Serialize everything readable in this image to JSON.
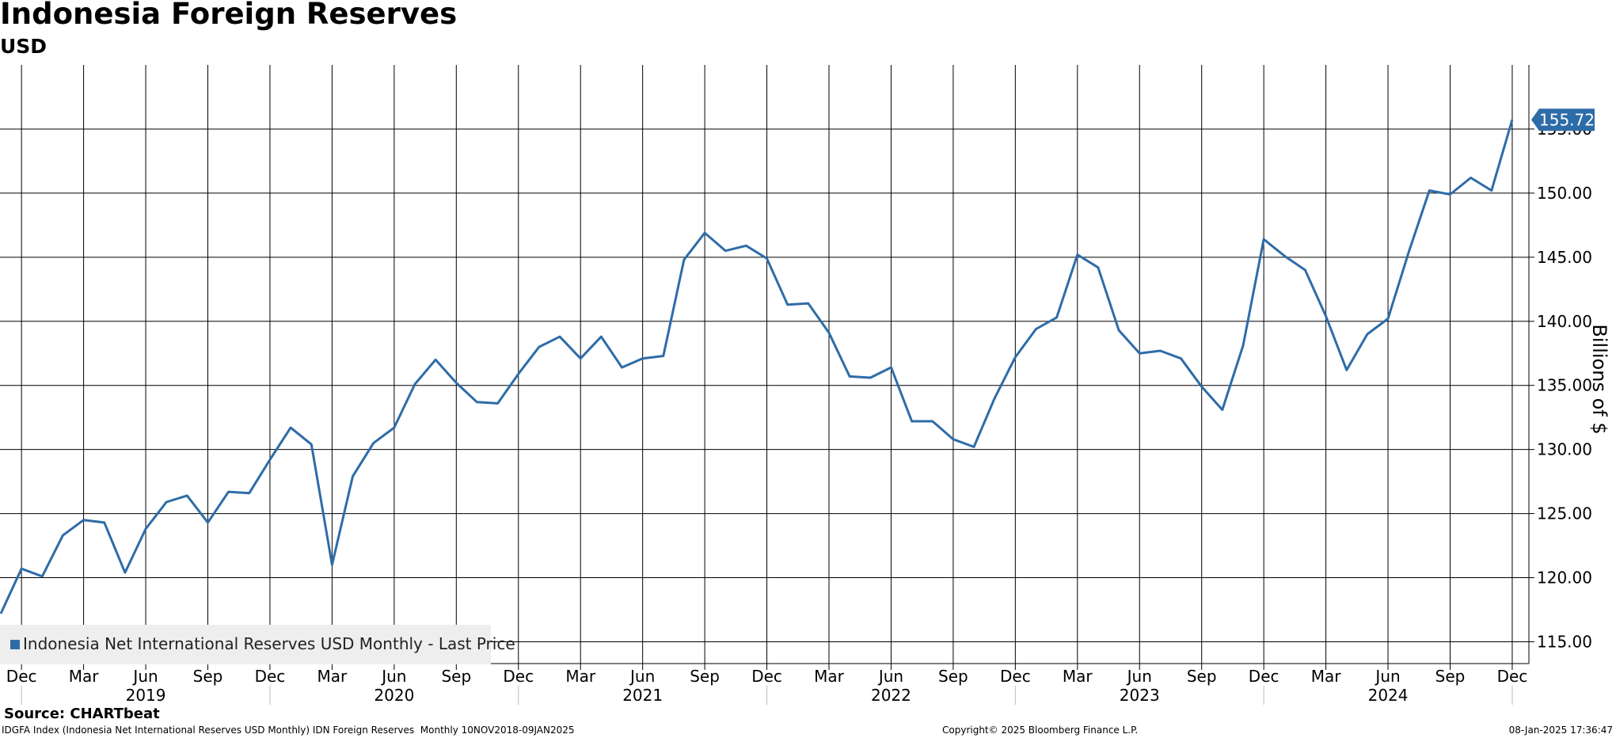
{
  "title": "Indonesia Foreign Reserves",
  "subtitle": "USD",
  "source": "Source: CHARTbeat",
  "footer": {
    "left": "IDGFA Index (Indonesia Net International Reserves USD Monthly) IDN Foreign Reserves  Monthly 10NOV2018-09JAN2025",
    "mid": "Copyright© 2025 Bloomberg Finance L.P.",
    "right": "08-Jan-2025 17:36:47"
  },
  "colors": {
    "line": "#2e6ca8",
    "grid": "#000000",
    "last_price_bg": "#2e6ca8",
    "legend_bg": "#eeeeee"
  },
  "chart_data": {
    "type": "line",
    "ylabel": "Billions of $",
    "ylim": [
      113.3,
      160.0
    ],
    "y_ticks": [
      "115.00",
      "120.00",
      "125.00",
      "130.00",
      "135.00",
      "140.00",
      "145.00",
      "150.00",
      "155.00"
    ],
    "y_tick_values": [
      115,
      120,
      125,
      130,
      135,
      140,
      145,
      150,
      155
    ],
    "month_ticks": [
      "Dec",
      "Mar",
      "Jun",
      "Sep",
      "Dec",
      "Mar",
      "Jun",
      "Sep",
      "Dec",
      "Mar",
      "Jun",
      "Sep",
      "Dec",
      "Mar",
      "Jun",
      "Sep",
      "Dec",
      "Mar",
      "Jun",
      "Sep",
      "Dec",
      "Mar",
      "Jun",
      "Sep",
      "Dec"
    ],
    "year_labels": [
      "2019",
      "2020",
      "2021",
      "2022",
      "2023",
      "2024"
    ],
    "x_start": "Nov 2018",
    "x_end": "Jan 2025",
    "last_price_label": "155.72",
    "legend": "Indonesia Net International Reserves USD Monthly - Last Price",
    "series": [
      {
        "name": "Indonesia Net International Reserves USD Monthly - Last Price",
        "x": [
          "Nov 2018",
          "Dec 2018",
          "Jan 2019",
          "Feb 2019",
          "Mar 2019",
          "Apr 2019",
          "May 2019",
          "Jun 2019",
          "Jul 2019",
          "Aug 2019",
          "Sep 2019",
          "Oct 2019",
          "Nov 2019",
          "Dec 2019",
          "Jan 2020",
          "Feb 2020",
          "Mar 2020",
          "Apr 2020",
          "May 2020",
          "Jun 2020",
          "Jul 2020",
          "Aug 2020",
          "Sep 2020",
          "Oct 2020",
          "Nov 2020",
          "Dec 2020",
          "Jan 2021",
          "Feb 2021",
          "Mar 2021",
          "Apr 2021",
          "May 2021",
          "Jun 2021",
          "Jul 2021",
          "Aug 2021",
          "Sep 2021",
          "Oct 2021",
          "Nov 2021",
          "Dec 2021",
          "Jan 2022",
          "Feb 2022",
          "Mar 2022",
          "Apr 2022",
          "May 2022",
          "Jun 2022",
          "Jul 2022",
          "Aug 2022",
          "Sep 2022",
          "Oct 2022",
          "Nov 2022",
          "Dec 2022",
          "Jan 2023",
          "Feb 2023",
          "Mar 2023",
          "Apr 2023",
          "May 2023",
          "Jun 2023",
          "Jul 2023",
          "Aug 2023",
          "Sep 2023",
          "Oct 2023",
          "Nov 2023",
          "Dec 2023",
          "Jan 2024",
          "Feb 2024",
          "Mar 2024",
          "Apr 2024",
          "May 2024",
          "Jun 2024",
          "Jul 2024",
          "Aug 2024",
          "Sep 2024",
          "Oct 2024",
          "Nov 2024",
          "Dec 2024"
        ],
        "values": [
          117.2,
          120.7,
          120.1,
          123.3,
          124.5,
          124.3,
          120.4,
          123.8,
          125.9,
          126.4,
          124.3,
          126.7,
          126.6,
          129.2,
          131.7,
          130.4,
          121.0,
          127.9,
          130.5,
          131.7,
          135.1,
          137.0,
          135.2,
          133.7,
          133.6,
          135.9,
          138.0,
          138.8,
          137.1,
          138.8,
          136.4,
          137.1,
          137.3,
          144.8,
          146.9,
          145.5,
          145.9,
          144.9,
          141.3,
          141.4,
          139.1,
          135.7,
          135.6,
          136.4,
          132.2,
          132.2,
          130.8,
          130.2,
          134.0,
          137.2,
          139.4,
          140.3,
          145.2,
          144.2,
          139.3,
          137.5,
          137.7,
          137.1,
          134.9,
          133.1,
          138.1,
          146.4,
          145.1,
          144.0,
          140.4,
          136.2,
          139.0,
          140.2,
          145.4,
          150.2,
          149.9,
          151.2,
          150.2,
          155.72
        ]
      }
    ]
  }
}
